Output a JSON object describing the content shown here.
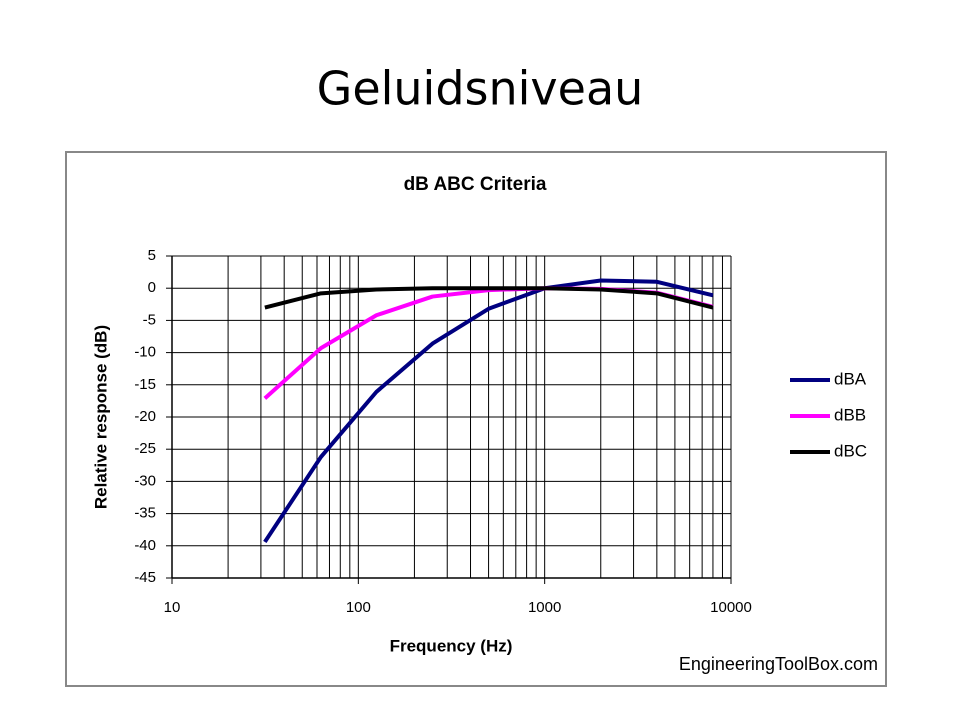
{
  "title": "Geluidsniveau",
  "chart_data": {
    "type": "line",
    "title": "dB ABC Criteria",
    "x_label": "Frequency (Hz)",
    "y_label": "Relative response (dB)",
    "source": "EngineeringToolBox.com",
    "x": [
      31.5,
      63,
      125,
      250,
      500,
      1000,
      2000,
      4000,
      8000
    ],
    "series": [
      {
        "name": "dBA",
        "color": "#000080",
        "values": [
          -39.4,
          -26.2,
          -16.1,
          -8.6,
          -3.2,
          0,
          1.2,
          1.0,
          -1.1
        ]
      },
      {
        "name": "dBB",
        "color": "#ff00ff",
        "values": [
          -17.1,
          -9.3,
          -4.2,
          -1.3,
          -0.3,
          0,
          -0.1,
          -0.7,
          -2.9
        ]
      },
      {
        "name": "dBC",
        "color": "#000000",
        "values": [
          -3.0,
          -0.8,
          -0.2,
          0,
          0,
          0,
          -0.2,
          -0.8,
          -3.0
        ]
      }
    ],
    "xlog": true,
    "xlim": [
      10,
      10000
    ],
    "xticks": [
      10,
      100,
      1000,
      10000
    ],
    "xgrid_minor": [
      20,
      30,
      40,
      50,
      60,
      70,
      80,
      90,
      200,
      300,
      400,
      500,
      600,
      700,
      800,
      900,
      2000,
      3000,
      4000,
      5000,
      6000,
      7000,
      8000,
      9000
    ],
    "ylim": [
      -45,
      5
    ],
    "yticks": [
      -45,
      -40,
      -35,
      -30,
      -25,
      -20,
      -15,
      -10,
      -5,
      0,
      5
    ],
    "grid": true,
    "legend": "right"
  }
}
